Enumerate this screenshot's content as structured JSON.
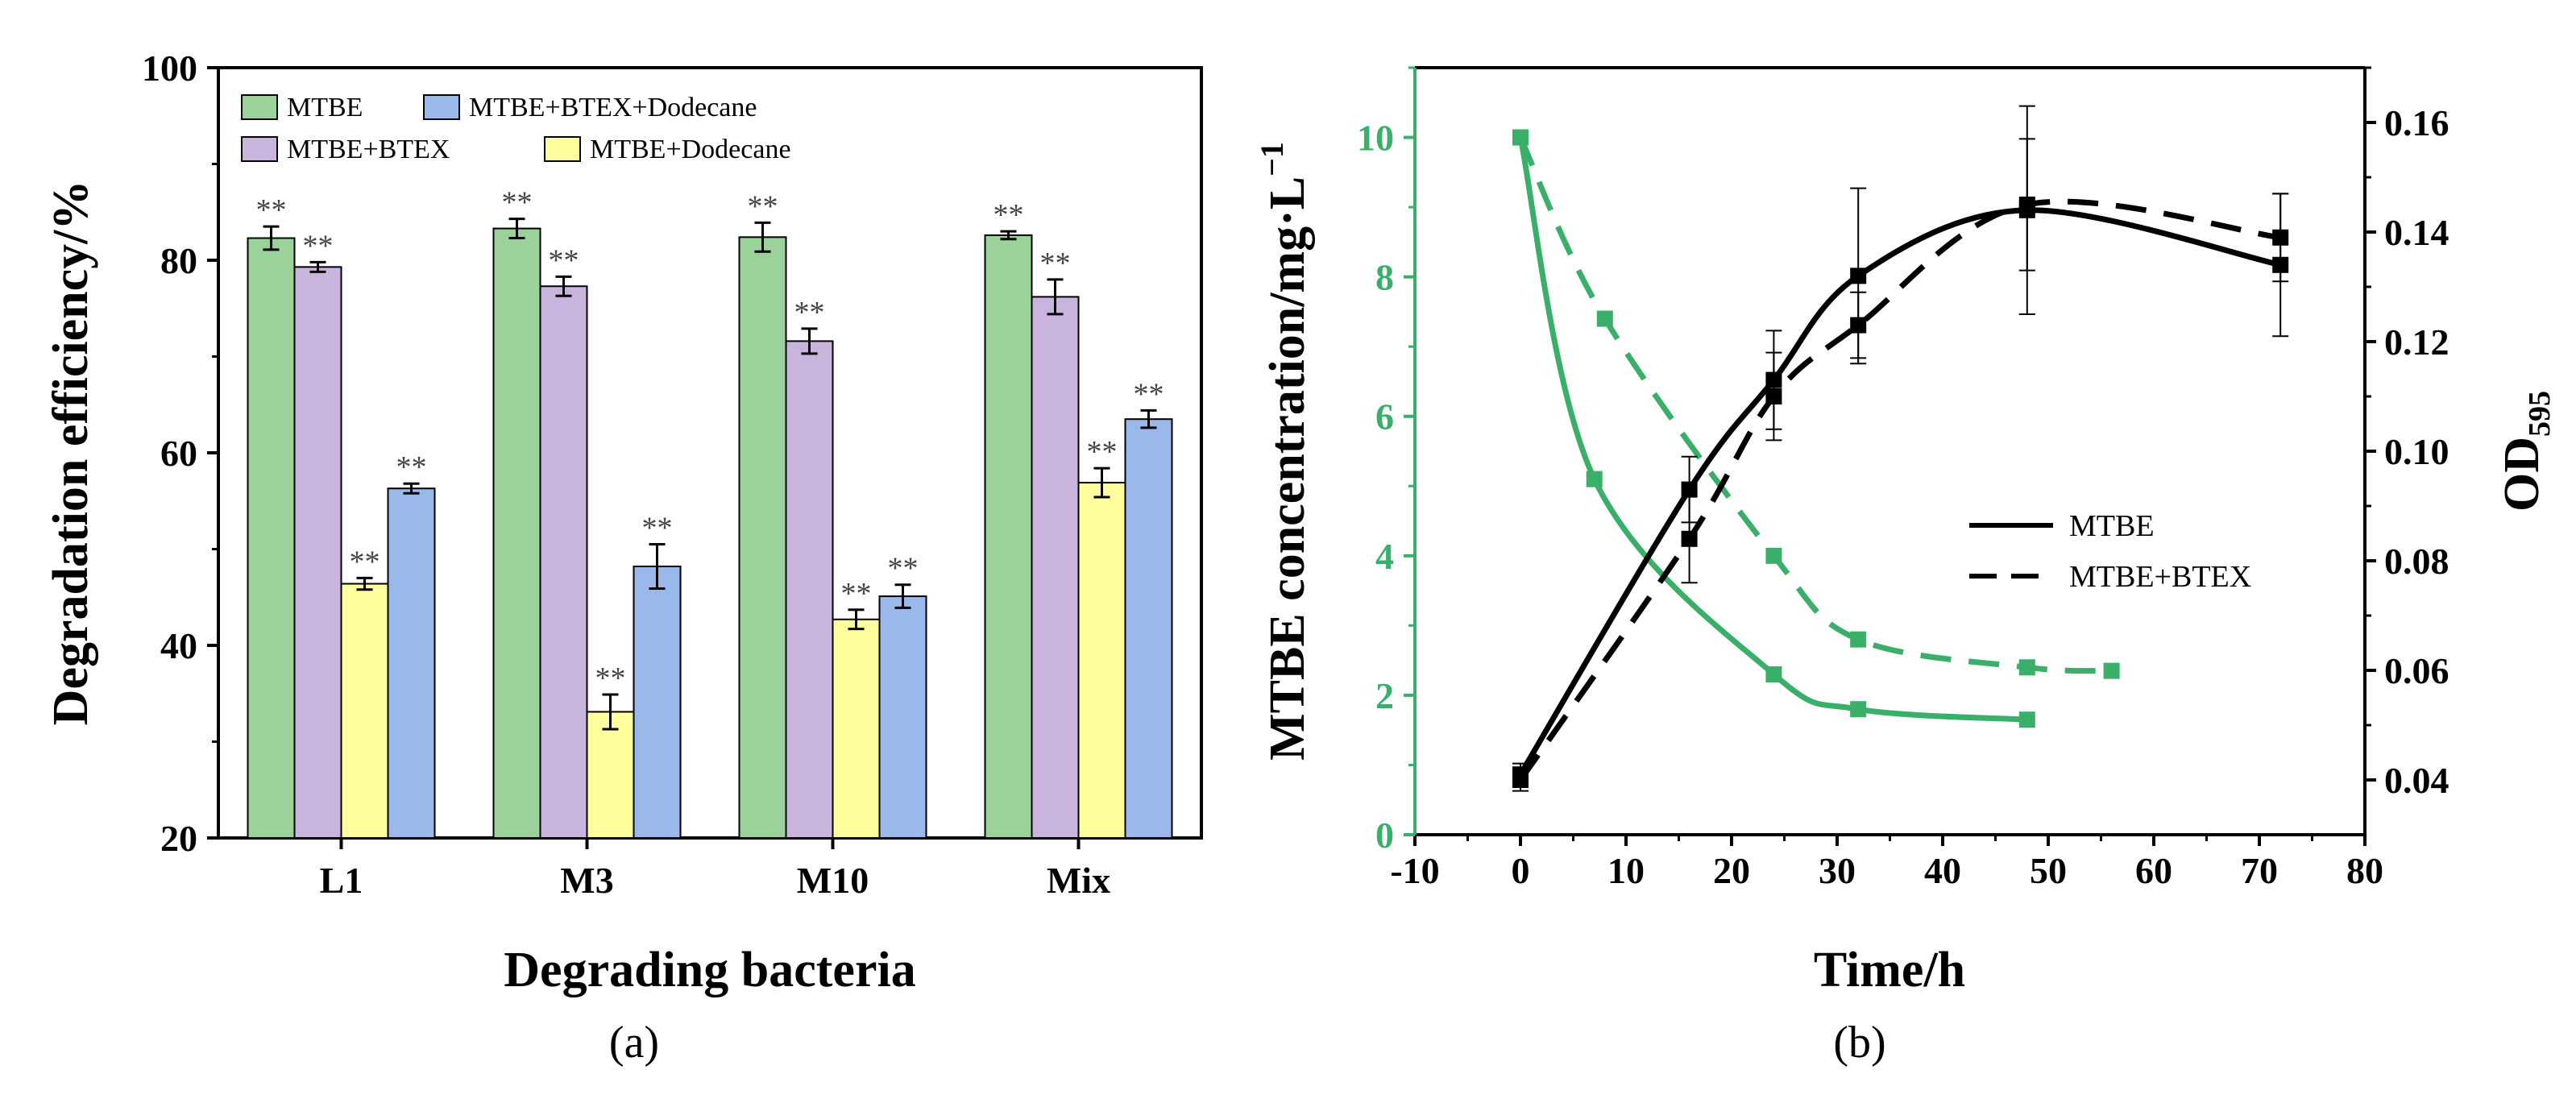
{
  "colors": {
    "mtbe": "#9ad29a",
    "btex": "#c8b4dc",
    "dodecane": "#ffff9e",
    "all": "#9ab8ea",
    "green": "#3aaf6a",
    "black": "#000000"
  },
  "chart_data": [
    {
      "type": "bar",
      "caption": "(a)",
      "xlabel": "Degrading bacteria",
      "ylabel": "Degradation efficiency/%",
      "ylim": [
        20,
        100
      ],
      "yticks": [
        "20",
        "40",
        "60",
        "80",
        "100"
      ],
      "categories": [
        "L1",
        "M3",
        "M10",
        "Mix"
      ],
      "series": [
        {
          "name": "MTBE",
          "values": [
            82.3,
            83.3,
            82.4,
            82.6
          ],
          "errors": [
            1.2,
            1.0,
            1.5,
            0.4
          ]
        },
        {
          "name": "MTBE+BTEX",
          "values": [
            79.3,
            77.3,
            71.6,
            76.2
          ],
          "errors": [
            0.5,
            1.0,
            1.3,
            1.8
          ]
        },
        {
          "name": "MTBE+Dodecane",
          "values": [
            46.4,
            33.1,
            42.7,
            56.9
          ],
          "errors": [
            0.6,
            1.8,
            1.0,
            1.5
          ]
        },
        {
          "name": "MTBE+BTEX+Dodecane",
          "values": [
            56.3,
            48.2,
            45.1,
            63.5
          ],
          "errors": [
            0.5,
            2.3,
            1.2,
            0.9
          ]
        }
      ],
      "significance_label": "**"
    },
    {
      "type": "line",
      "caption": "(b)",
      "xlabel": "Time/h",
      "ylabel_left": "MTBE concentration/mg·L",
      "ylabel_left_sup": "−1",
      "ylabel_right": "OD",
      "ylabel_right_sub": "595",
      "xlim": [
        -10,
        80
      ],
      "xticks": [
        "-10",
        "0",
        "10",
        "20",
        "30",
        "40",
        "50",
        "60",
        "70",
        "80"
      ],
      "ylim_left": [
        0,
        11
      ],
      "yticks_left": [
        "0",
        "2",
        "4",
        "6",
        "8",
        "10"
      ],
      "ylim_right": [
        0.03,
        0.17
      ],
      "yticks_right": [
        "0.04",
        "0.06",
        "0.08",
        "0.10",
        "0.12",
        "0.14",
        "0.16"
      ],
      "legend": [
        "MTBE",
        "MTBE+BTEX"
      ],
      "series": [
        {
          "name": "MTBE concentration (MTBE)",
          "axis": "left",
          "style": "solid",
          "color": "green",
          "x": [
            0,
            7,
            24,
            32,
            48
          ],
          "y": [
            10.0,
            5.1,
            2.3,
            1.8,
            1.65
          ]
        },
        {
          "name": "MTBE concentration (MTBE+BTEX)",
          "axis": "left",
          "style": "dashed",
          "color": "green",
          "x": [
            0,
            8,
            24,
            32,
            48,
            56
          ],
          "y": [
            10.0,
            7.4,
            4.0,
            2.8,
            2.4,
            2.35
          ]
        },
        {
          "name": "OD595 (MTBE)",
          "axis": "right",
          "style": "solid",
          "color": "black",
          "x": [
            0,
            16,
            24,
            32,
            48,
            72
          ],
          "y": [
            0.041,
            0.093,
            0.113,
            0.132,
            0.144,
            0.134
          ],
          "errors": [
            0.002,
            0.006,
            0.009,
            0.016,
            0.019,
            0.013
          ]
        },
        {
          "name": "OD595 (MTBE+BTEX)",
          "axis": "right",
          "style": "dashed",
          "color": "black",
          "x": [
            0,
            16,
            24,
            32,
            48,
            72
          ],
          "y": [
            0.04,
            0.084,
            0.11,
            0.123,
            0.145,
            0.139
          ],
          "errors": [
            0.002,
            0.008,
            0.008,
            0.006,
            0.012,
            0.008
          ]
        }
      ]
    }
  ]
}
